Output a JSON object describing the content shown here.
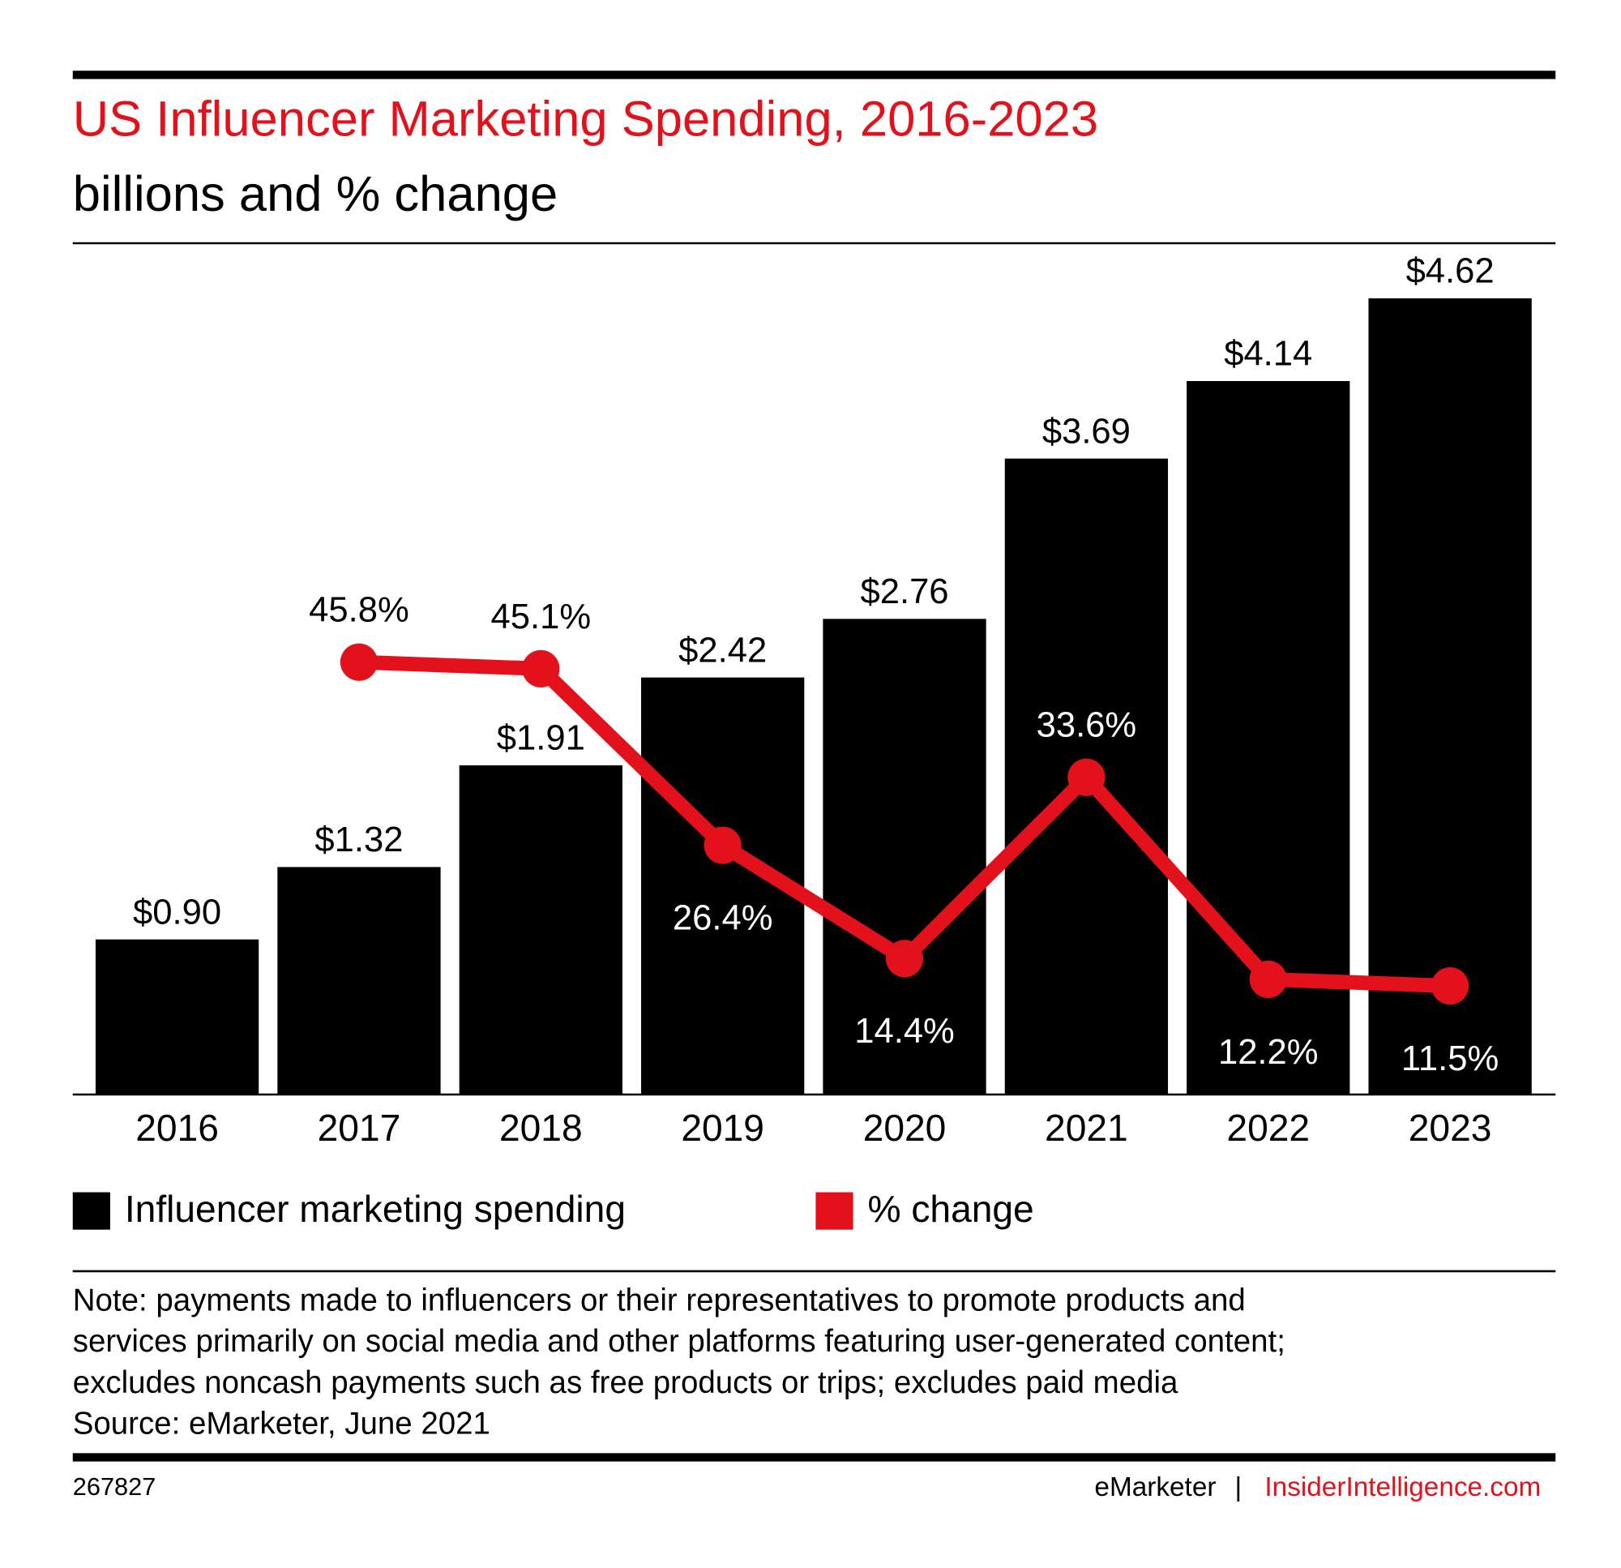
{
  "chart_data": {
    "type": "bar",
    "title": "US Influencer Marketing Spending, 2016-2023",
    "subtitle": "billions and % change",
    "categories": [
      "2016",
      "2017",
      "2018",
      "2019",
      "2020",
      "2021",
      "2022",
      "2023"
    ],
    "series": [
      {
        "name": "Influencer marketing spending",
        "type": "bar",
        "color": "#000000",
        "values": [
          0.9,
          1.32,
          1.91,
          2.42,
          2.76,
          3.69,
          4.14,
          4.62
        ],
        "value_labels": [
          "$0.90",
          "$1.32",
          "$1.91",
          "$2.42",
          "$2.76",
          "$3.69",
          "$4.14",
          "$4.62"
        ]
      },
      {
        "name": "% change",
        "type": "line",
        "color": "#e3111b",
        "values": [
          null,
          45.8,
          45.1,
          26.4,
          14.4,
          33.6,
          12.2,
          11.5
        ],
        "value_labels": [
          null,
          "45.8%",
          "45.1%",
          "26.4%",
          "14.4%",
          "33.6%",
          "12.2%",
          "11.5%"
        ]
      }
    ],
    "note": [
      "Note: payments made to influencers or their representatives to promote products and",
      "services primarily on social media and other platforms featuring user-generated content;",
      "excludes noncash payments such as free products or trips; excludes paid media",
      "Source: eMarketer, June 2021"
    ],
    "chart_id": "267827",
    "brand": "eMarketer",
    "separator": "|",
    "website": "InsiderIntelligence.com"
  }
}
